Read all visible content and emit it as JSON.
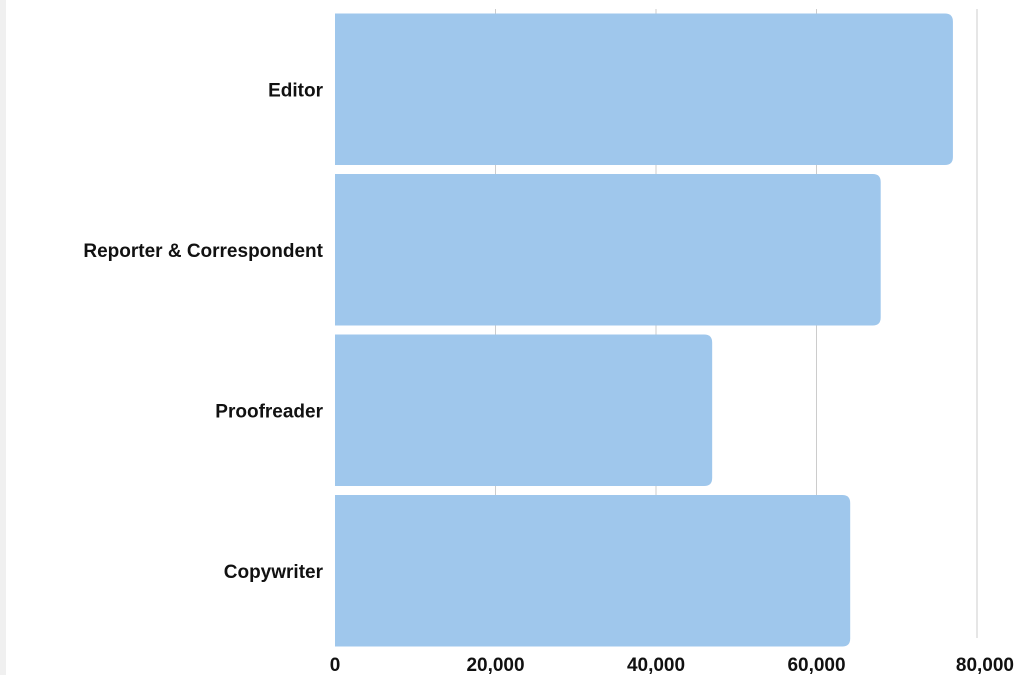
{
  "chart_data": {
    "type": "bar",
    "orientation": "horizontal",
    "categories": [
      "Editor",
      "Reporter & Correspondent",
      "Proofreader",
      "Copywriter"
    ],
    "values": [
      77000,
      68000,
      47000,
      64200
    ],
    "xlim": [
      0,
      80000
    ],
    "x_ticks": [
      0,
      20000,
      40000,
      60000,
      80000
    ],
    "x_tick_labels": [
      "0",
      "20,000",
      "40,000",
      "60,000",
      "80,000"
    ],
    "title": "",
    "xlabel": "",
    "ylabel": "",
    "grid": "vertical",
    "legend": "none",
    "colors": {
      "bar": "#9fc7ec",
      "grid": "#cccccc",
      "text": "#111111"
    }
  }
}
